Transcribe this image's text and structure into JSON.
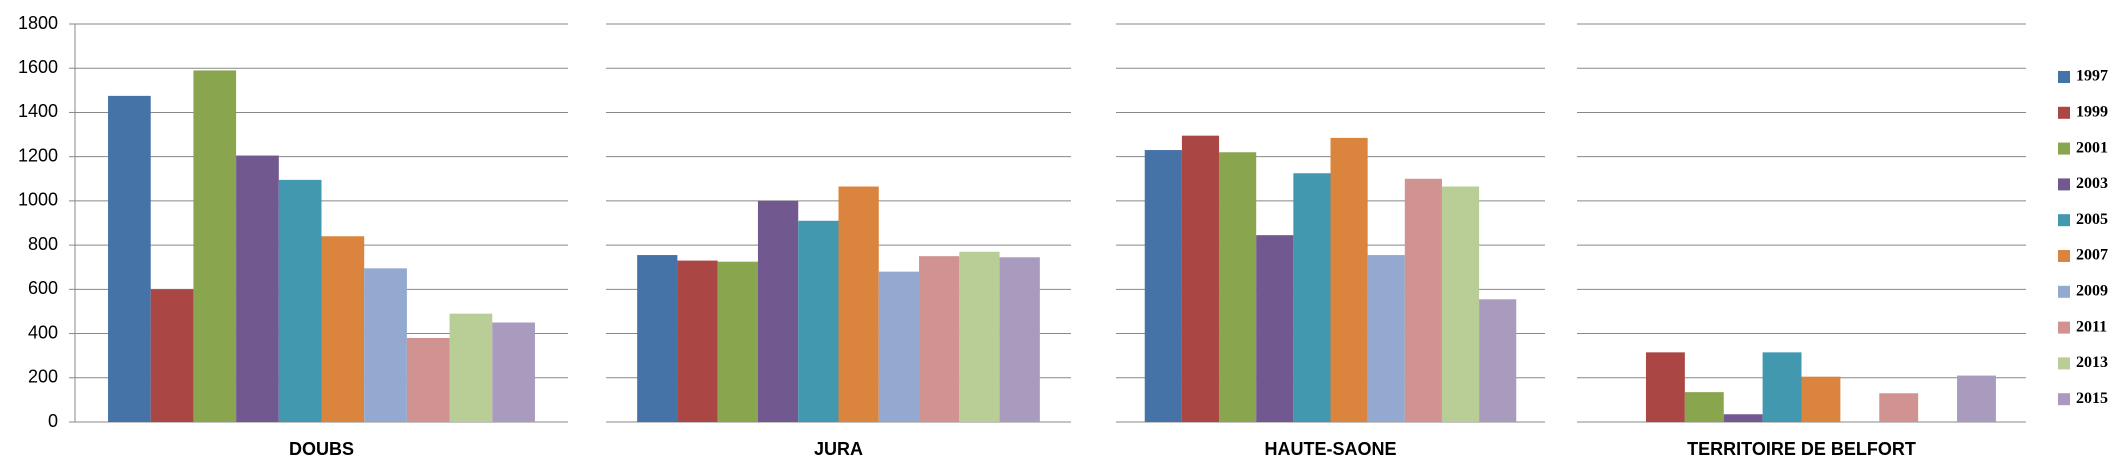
{
  "chart_data": {
    "type": "bar",
    "categories": [
      "DOUBS",
      "JURA",
      "HAUTE-SAONE",
      "TERRITOIRE DE BELFORT"
    ],
    "series": [
      {
        "name": "1997",
        "color": "#4572A7",
        "values": [
          1475,
          755,
          1230,
          null
        ]
      },
      {
        "name": "1999",
        "color": "#AA4643",
        "values": [
          600,
          730,
          1295,
          315
        ]
      },
      {
        "name": "2001",
        "color": "#89A54E",
        "values": [
          1590,
          725,
          1220,
          135
        ]
      },
      {
        "name": "2003",
        "color": "#71588F",
        "values": [
          1205,
          1000,
          845,
          35
        ]
      },
      {
        "name": "2005",
        "color": "#4198AF",
        "values": [
          1095,
          910,
          1125,
          315
        ]
      },
      {
        "name": "2007",
        "color": "#DB843D",
        "values": [
          840,
          1065,
          1285,
          205
        ]
      },
      {
        "name": "2009",
        "color": "#93A9CF",
        "values": [
          695,
          680,
          755,
          null
        ]
      },
      {
        "name": "2011",
        "color": "#D19392",
        "values": [
          380,
          750,
          1100,
          130
        ]
      },
      {
        "name": "2013",
        "color": "#B9CD96",
        "values": [
          490,
          770,
          1065,
          null
        ]
      },
      {
        "name": "2015",
        "color": "#A99BBD",
        "values": [
          450,
          745,
          555,
          210
        ]
      }
    ],
    "ylim": [
      0,
      1800
    ],
    "yticks": [
      0,
      200,
      400,
      600,
      800,
      1000,
      1200,
      1400,
      1600,
      1800
    ],
    "grid": true,
    "legend": "right"
  }
}
